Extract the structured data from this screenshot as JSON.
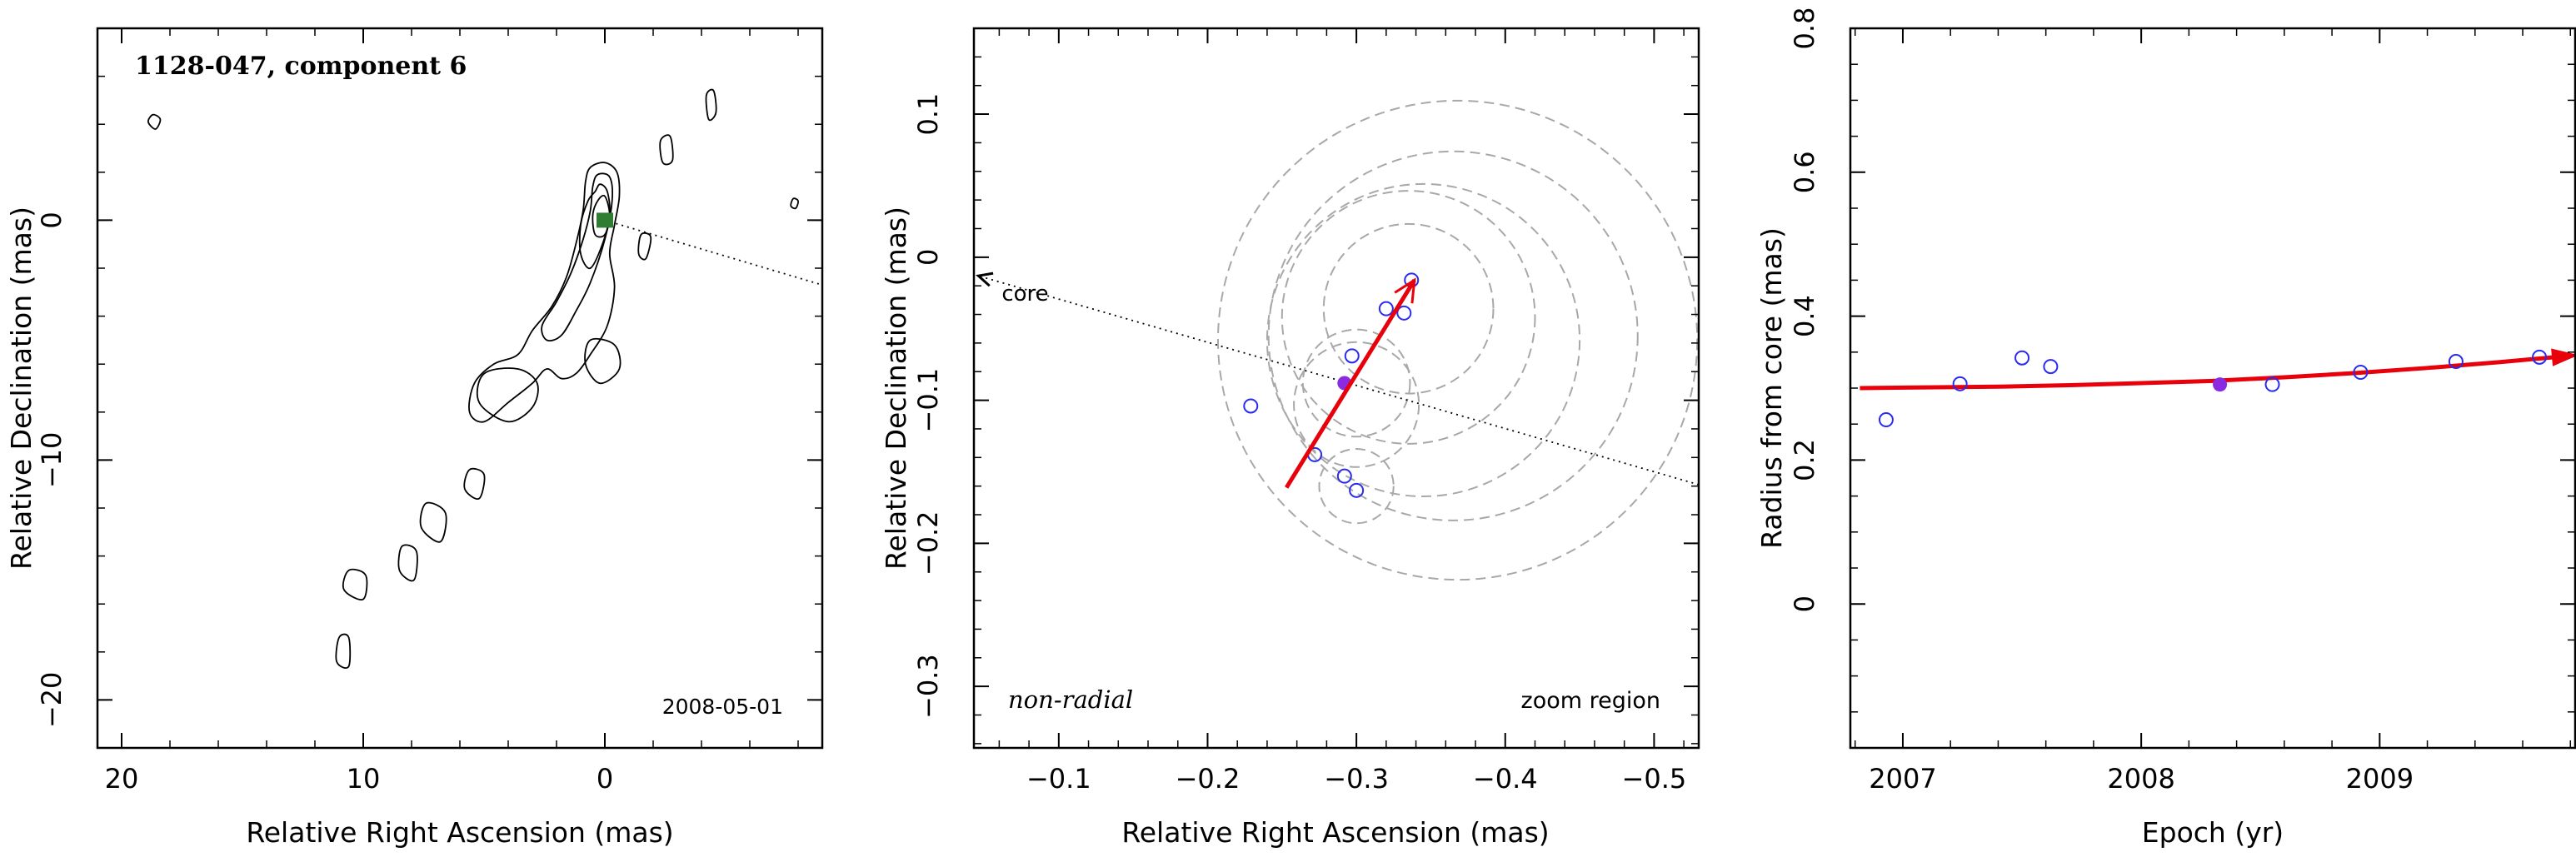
{
  "chart_data": [
    {
      "type": "contour",
      "title": "1128-047, component 6",
      "xlabel": "Relative Right Ascension (mas)",
      "ylabel": "Relative Declination (mas)",
      "date_label": "2008-05-01",
      "xlim": [
        21,
        -9
      ],
      "ylim": [
        -22,
        8
      ],
      "xticks": [
        20,
        10,
        0
      ],
      "yticks": [
        0,
        -10,
        -20
      ],
      "component_position": [
        0,
        0
      ],
      "component_color": "#2e7d32",
      "direction_line": {
        "from": [
          0,
          0
        ],
        "to": [
          -9,
          -2.7
        ]
      },
      "contour_islands": [
        {
          "x": [
            0.8,
            0.6,
            0.0,
            -0.5,
            -0.6,
            -0.4,
            -0.2,
            -0.4,
            -0.1,
            0.6,
            1.2,
            1.8,
            2.4,
            3.0,
            4.0,
            5.0,
            5.6,
            5.4,
            4.6,
            3.6,
            3.0,
            2.2,
            1.6,
            1.2,
            0.9,
            0.8
          ],
          "y": [
            1.6,
            2.2,
            2.4,
            2.0,
            1.0,
            -0.2,
            -1.4,
            -2.8,
            -4.4,
            -5.6,
            -6.4,
            -6.6,
            -6.2,
            -6.8,
            -7.6,
            -8.4,
            -8.0,
            -6.8,
            -6.0,
            -5.6,
            -4.6,
            -3.6,
            -2.4,
            -1.0,
            0.4,
            1.6
          ]
        },
        {
          "x": [
            0.5,
            0.3,
            -0.2,
            -0.3,
            0.0,
            0.6,
            1.2,
            1.8,
            2.4,
            2.6,
            2.0,
            1.4,
            0.9,
            0.6,
            0.5
          ],
          "y": [
            1.4,
            1.9,
            1.8,
            0.8,
            -0.8,
            -2.6,
            -3.8,
            -4.8,
            -5.0,
            -4.4,
            -3.4,
            -2.2,
            -0.8,
            0.4,
            1.4
          ]
        },
        {
          "x": [
            0.4,
            0.2,
            -0.1,
            -0.2,
            0.1,
            0.6,
            1.0,
            1.0,
            0.7,
            0.4
          ],
          "y": [
            1.2,
            1.5,
            1.2,
            0.2,
            -1.0,
            -2.0,
            -1.4,
            -0.2,
            0.8,
            1.2
          ]
        },
        {
          "x": [
            0.3,
            0.0,
            -0.2,
            0.0,
            0.4,
            0.5,
            0.3
          ],
          "y": [
            0.8,
            1.0,
            0.2,
            -0.6,
            -0.6,
            0.2,
            0.8
          ]
        },
        {
          "x": [
            0.6,
            -0.4,
            -0.6,
            0.2,
            0.8,
            0.6
          ],
          "y": [
            -5.0,
            -5.2,
            -6.2,
            -6.8,
            -6.0,
            -5.0
          ]
        },
        {
          "x": [
            5.0,
            3.6,
            2.8,
            3.0,
            4.0,
            5.2,
            5.0
          ],
          "y": [
            -6.4,
            -6.2,
            -6.8,
            -7.8,
            -8.4,
            -7.6,
            -6.4
          ]
        },
        {
          "x": [
            7.4,
            6.6,
            6.8,
            7.6,
            7.4
          ],
          "y": [
            -11.8,
            -12.2,
            -13.4,
            -12.8,
            -11.8
          ]
        },
        {
          "x": [
            5.6,
            5.0,
            5.2,
            5.8,
            5.6
          ],
          "y": [
            -10.4,
            -10.6,
            -11.6,
            -11.2,
            -10.4
          ]
        },
        {
          "x": [
            8.4,
            7.8,
            7.9,
            8.5,
            8.4
          ],
          "y": [
            -13.6,
            -13.8,
            -15.0,
            -14.6,
            -13.6
          ]
        },
        {
          "x": [
            10.6,
            9.9,
            10.0,
            10.8,
            10.6
          ],
          "y": [
            -14.6,
            -14.8,
            -15.8,
            -15.4,
            -14.6
          ]
        },
        {
          "x": [
            11.0,
            10.6,
            10.6,
            11.1,
            11.0
          ],
          "y": [
            -17.4,
            -17.4,
            -18.6,
            -18.4,
            -17.4
          ]
        },
        {
          "x": [
            -2.4,
            -2.8,
            -2.7,
            -2.3,
            -2.4
          ],
          "y": [
            2.4,
            2.5,
            3.5,
            3.3,
            2.4
          ]
        },
        {
          "x": [
            -4.3,
            -4.6,
            -4.5,
            -4.2,
            -4.3
          ],
          "y": [
            4.2,
            4.5,
            5.4,
            5.2,
            4.2
          ]
        },
        {
          "x": [
            -1.5,
            -1.9,
            -1.7,
            -1.4,
            -1.5
          ],
          "y": [
            -0.6,
            -0.7,
            -1.6,
            -1.4,
            -0.6
          ]
        },
        {
          "x": [
            18.7,
            18.4,
            18.6,
            18.9,
            18.7
          ],
          "y": [
            4.4,
            4.2,
            3.8,
            4.1,
            4.4
          ]
        },
        {
          "x": [
            -7.8,
            -8.0,
            -7.9,
            -7.7,
            -7.8
          ],
          "y": [
            0.9,
            0.8,
            0.5,
            0.6,
            0.9
          ]
        }
      ]
    },
    {
      "type": "scatter",
      "xlabel": "Relative Right Ascension (mas)",
      "ylabel": "Relative Declination (mas)",
      "annotation_left": "non-radial",
      "annotation_right": "zoom region",
      "core_label": "core",
      "xlim": [
        -0.043,
        -0.53
      ],
      "ylim": [
        -0.343,
        0.16
      ],
      "xticks": [
        -0.1,
        -0.2,
        -0.3,
        -0.4,
        -0.5
      ],
      "yticks": [
        0.1,
        0,
        -0.1,
        -0.2,
        -0.3
      ],
      "points": [
        {
          "x": -0.229,
          "y": -0.104
        },
        {
          "x": -0.272,
          "y": -0.138
        },
        {
          "x": -0.297,
          "y": -0.069
        },
        {
          "x": -0.292,
          "y": -0.153
        },
        {
          "x": -0.3,
          "y": -0.163
        },
        {
          "x": -0.32,
          "y": -0.036
        },
        {
          "x": -0.332,
          "y": -0.039
        },
        {
          "x": -0.337,
          "y": -0.016
        }
      ],
      "highlight_point": {
        "x": -0.292,
        "y": -0.088
      },
      "error_circles": [
        {
          "x": -0.3,
          "y": -0.088,
          "r": 0.036
        },
        {
          "x": -0.3,
          "y": -0.16,
          "r": 0.025
        },
        {
          "x": -0.3,
          "y": -0.103,
          "r": 0.042
        },
        {
          "x": -0.335,
          "y": -0.036,
          "r": 0.057
        },
        {
          "x": -0.335,
          "y": -0.042,
          "r": 0.085
        },
        {
          "x": -0.345,
          "y": -0.058,
          "r": 0.105
        },
        {
          "x": -0.365,
          "y": -0.055,
          "r": 0.124
        },
        {
          "x": -0.368,
          "y": -0.058,
          "r": 0.161
        }
      ],
      "fit_vector": {
        "from": [
          -0.253,
          -0.161
        ],
        "to": [
          -0.339,
          -0.016
        ]
      },
      "core_direction": {
        "from": [
          -0.53,
          -0.159
        ],
        "to": [
          -0.046,
          -0.013
        ]
      },
      "colors": {
        "points": "#2a2af0",
        "highlight": "#8a2be2",
        "vector": "#e8000b",
        "circles": "#a8a8a8"
      }
    },
    {
      "type": "scatter",
      "xlabel": "Epoch (yr)",
      "ylabel": "Radius from core (mas)",
      "xlim": [
        2006.78,
        2009.82
      ],
      "ylim": [
        -0.2,
        0.8
      ],
      "xticks": [
        2007,
        2008,
        2009
      ],
      "xtick_labels": [
        "2007",
        "2008",
        "2009"
      ],
      "yticks": [
        0,
        0.2,
        0.4,
        0.6,
        0.8
      ],
      "ytick_labels": [
        "0",
        "0.2",
        "0.4",
        "0.6",
        "0.8"
      ],
      "points": [
        {
          "x": 2006.93,
          "y": 0.256
        },
        {
          "x": 2007.24,
          "y": 0.306
        },
        {
          "x": 2007.5,
          "y": 0.342
        },
        {
          "x": 2007.62,
          "y": 0.33
        },
        {
          "x": 2008.55,
          "y": 0.305
        },
        {
          "x": 2008.92,
          "y": 0.322
        },
        {
          "x": 2009.32,
          "y": 0.337
        },
        {
          "x": 2009.67,
          "y": 0.343
        }
      ],
      "highlight_point": {
        "x": 2008.33,
        "y": 0.305
      },
      "fit_curve": {
        "x": [
          2006.82,
          2007.1,
          2007.4,
          2007.7,
          2008.0,
          2008.3,
          2008.6,
          2008.9,
          2009.2,
          2009.5,
          2009.8
        ],
        "y": [
          0.3,
          0.301,
          0.302,
          0.304,
          0.307,
          0.31,
          0.315,
          0.321,
          0.328,
          0.336,
          0.345
        ]
      },
      "colors": {
        "points": "#2a2af0",
        "highlight": "#8a2be2",
        "fit": "#e8000b"
      }
    }
  ]
}
